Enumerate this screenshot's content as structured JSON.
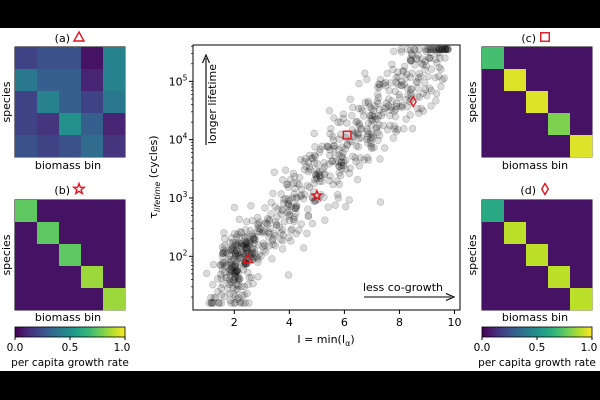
{
  "colors": {
    "marker_red": "#e0141e",
    "scatter_fill": "#000000",
    "viridis": [
      "#440154",
      "#482878",
      "#3e4989",
      "#31688e",
      "#26828e",
      "#1f9e89",
      "#35b779",
      "#6ece58",
      "#b5de2b",
      "#fde725"
    ]
  },
  "panels": [
    {
      "label": "(a)",
      "marker": "triangle",
      "xlabel": "biomass bin",
      "ylabel": "species",
      "matrix": [
        [
          0.2,
          0.25,
          0.25,
          0.05,
          0.45
        ],
        [
          0.4,
          0.3,
          0.3,
          0.1,
          0.45
        ],
        [
          0.2,
          0.45,
          0.3,
          0.2,
          0.4
        ],
        [
          0.2,
          0.15,
          0.5,
          0.3,
          0.1
        ],
        [
          0.25,
          0.2,
          0.25,
          0.35,
          0.15
        ]
      ]
    },
    {
      "label": "(b)",
      "marker": "star",
      "xlabel": "biomass bin",
      "ylabel": "species",
      "matrix": [
        [
          0.75,
          0.05,
          0.05,
          0.05,
          0.05
        ],
        [
          0.05,
          0.75,
          0.05,
          0.05,
          0.05
        ],
        [
          0.05,
          0.05,
          0.75,
          0.05,
          0.05
        ],
        [
          0.05,
          0.05,
          0.05,
          0.85,
          0.05
        ],
        [
          0.05,
          0.05,
          0.05,
          0.05,
          0.85
        ]
      ]
    },
    {
      "label": "(c)",
      "marker": "square",
      "xlabel": "biomass bin",
      "ylabel": "species",
      "matrix": [
        [
          0.7,
          0.05,
          0.05,
          0.05,
          0.05
        ],
        [
          0.05,
          0.95,
          0.05,
          0.05,
          0.05
        ],
        [
          0.05,
          0.05,
          0.95,
          0.05,
          0.05
        ],
        [
          0.05,
          0.05,
          0.05,
          0.8,
          0.05
        ],
        [
          0.05,
          0.05,
          0.05,
          0.05,
          0.95
        ]
      ]
    },
    {
      "label": "(d)",
      "marker": "diamond",
      "xlabel": "biomass bin",
      "ylabel": "species",
      "matrix": [
        [
          0.6,
          0.05,
          0.05,
          0.05,
          0.05
        ],
        [
          0.05,
          0.9,
          0.05,
          0.05,
          0.05
        ],
        [
          0.05,
          0.05,
          0.9,
          0.05,
          0.05
        ],
        [
          0.05,
          0.05,
          0.05,
          0.9,
          0.05
        ],
        [
          0.05,
          0.05,
          0.05,
          0.05,
          0.9
        ]
      ]
    }
  ],
  "colorbar": {
    "ticks": [
      "0.0",
      "0.5",
      "1.0"
    ],
    "label": "per capita growth rate",
    "range": [
      0,
      1
    ]
  },
  "chart_data": {
    "type": "scatter",
    "xlabel": "I = min(I",
    "xlabel_sub": "α",
    "xlabel_end": ")",
    "ylabel": "τ",
    "ylabel_sub": "lifetime",
    "ylabel_end": " (cycles)",
    "xlim": [
      0.5,
      10.2
    ],
    "ylim": [
      12,
      420000
    ],
    "yscale": "log",
    "xticks": [
      2,
      4,
      6,
      8,
      10
    ],
    "yticks": [
      {
        "value": 100,
        "base": "10",
        "exp": "2"
      },
      {
        "value": 1000,
        "base": "10",
        "exp": "3"
      },
      {
        "value": 10000,
        "base": "10",
        "exp": "4"
      },
      {
        "value": 100000,
        "base": "10",
        "exp": "5"
      }
    ],
    "annotations": {
      "vertical": "longer lifetime",
      "horizontal": "less co-growth"
    },
    "highlighted": [
      {
        "name": "a",
        "marker": "triangle",
        "x": 2.5,
        "y": 90
      },
      {
        "name": "b",
        "marker": "star",
        "x": 5.0,
        "y": 1100
      },
      {
        "name": "c",
        "marker": "square",
        "x": 6.1,
        "y": 12000
      },
      {
        "name": "d",
        "marker": "diamond",
        "x": 8.5,
        "y": 45000
      }
    ],
    "point_count": 700,
    "trend": {
      "slope": 0.5,
      "intercept": 0.8,
      "sd": 0.38
    },
    "x_range": [
      1.0,
      9.8
    ]
  }
}
